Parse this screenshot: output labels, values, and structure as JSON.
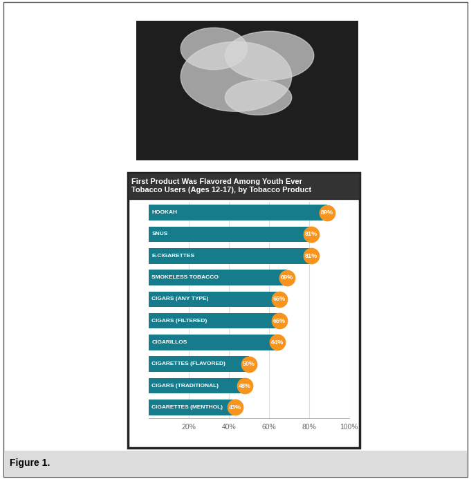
{
  "chart_data": {
    "type": "bar",
    "orientation": "horizontal",
    "title": "First Product Was Flavored Among Youth Ever Tobacco Users (Ages 12-17), by Tobacco Product",
    "categories": [
      "HOOKAH",
      "SNUS",
      "E-CIGARETTES",
      "SMOKELESS TOBACCO",
      "CIGARS (ANY TYPE)",
      "CIGARS (FILTERED)",
      "CIGARILLOS",
      "CIGARETTES (FLAVORED)",
      "CIGARS (TRADITIONAL)",
      "CIGARETTES (MENTHOL)"
    ],
    "values": [
      89,
      81,
      81,
      69,
      65,
      65,
      64,
      50,
      48,
      43
    ],
    "value_labels": [
      "89%",
      "81%",
      "81%",
      "69%",
      "65%",
      "65%",
      "64%",
      "50%",
      "48%",
      "43%"
    ],
    "data_labels": true,
    "color": "#167c8c",
    "xlim": [
      0,
      100
    ],
    "xticks": [
      {
        "value": 20,
        "label": "20%"
      },
      {
        "value": 40,
        "label": "40%"
      },
      {
        "value": 60,
        "label": "60%"
      },
      {
        "value": 80,
        "label": "80%"
      },
      {
        "value": 100,
        "label": "100%"
      }
    ],
    "grid": true,
    "tick_labels": "x"
  },
  "caption": "Figure 1."
}
